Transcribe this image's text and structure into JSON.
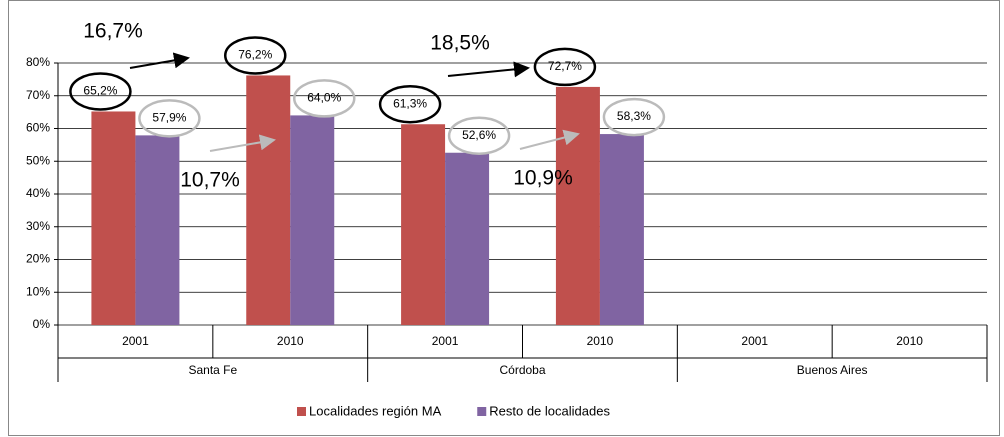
{
  "chart_data": {
    "type": "bar",
    "categories": [
      "2001",
      "2010",
      "2001",
      "2010",
      "2001",
      "2010"
    ],
    "groups": [
      "Santa Fe",
      "Córdoba",
      "Buenos Aires"
    ],
    "series": [
      {
        "name": "Localidades región MA",
        "color": "#c0504d",
        "values": [
          65.2,
          76.2,
          61.3,
          72.7,
          null,
          null
        ],
        "value_labels": [
          "65,2%",
          "76,2%",
          "61,3%",
          "72,7%",
          null,
          null
        ]
      },
      {
        "name": "Resto de localidades",
        "color": "#8064a2",
        "values": [
          57.9,
          64.0,
          52.6,
          58.3,
          null,
          null
        ],
        "value_labels": [
          "57,9%",
          "64,0%",
          "52,6%",
          "58,3%",
          null,
          null
        ]
      }
    ],
    "annotations": [
      "16,7%",
      "10,7%",
      "18,5%",
      "10,9%"
    ],
    "ylim": [
      0,
      80
    ],
    "yticks": [
      {
        "value": 0,
        "label": "0%"
      },
      {
        "value": 10,
        "label": "10%"
      },
      {
        "value": 20,
        "label": "20%"
      },
      {
        "value": 30,
        "label": "30%"
      },
      {
        "value": 40,
        "label": "40%"
      },
      {
        "value": 50,
        "label": "50%"
      },
      {
        "value": 60,
        "label": "60%"
      },
      {
        "value": 70,
        "label": "70%"
      },
      {
        "value": 80,
        "label": "80%"
      }
    ],
    "grid": true,
    "legend": "bottom"
  }
}
